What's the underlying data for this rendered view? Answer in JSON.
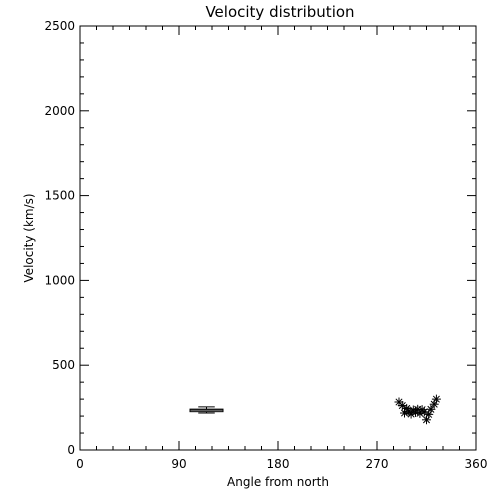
{
  "chart_data": {
    "type": "scatter",
    "title": "Velocity distribution",
    "xlabel": "Angle from north",
    "ylabel": "Velocity (km/s)",
    "xlim": [
      0,
      360
    ],
    "ylim": [
      0,
      2500
    ],
    "xticks": [
      0,
      90,
      180,
      270,
      360
    ],
    "yticks": [
      0,
      500,
      1000,
      1500,
      2000,
      2500
    ],
    "grid": false,
    "boxplot": {
      "x": 115,
      "width": 30,
      "whisker_low": 218,
      "q1": 226,
      "median": 235,
      "q3": 241,
      "whisker_high": 254
    },
    "scatter_points": [
      {
        "x": 290,
        "y": 283
      },
      {
        "x": 293,
        "y": 262
      },
      {
        "x": 295,
        "y": 218
      },
      {
        "x": 297,
        "y": 245
      },
      {
        "x": 299,
        "y": 228
      },
      {
        "x": 301,
        "y": 212
      },
      {
        "x": 303,
        "y": 236
      },
      {
        "x": 305,
        "y": 222
      },
      {
        "x": 307,
        "y": 240
      },
      {
        "x": 309,
        "y": 216
      },
      {
        "x": 311,
        "y": 238
      },
      {
        "x": 313,
        "y": 225
      },
      {
        "x": 315,
        "y": 178
      },
      {
        "x": 317,
        "y": 210
      },
      {
        "x": 319,
        "y": 240
      },
      {
        "x": 322,
        "y": 270
      },
      {
        "x": 324,
        "y": 300
      }
    ]
  }
}
